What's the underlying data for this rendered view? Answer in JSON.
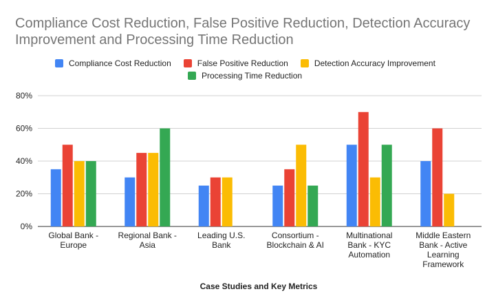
{
  "chart_data": {
    "type": "bar",
    "title": "Compliance Cost Reduction, False Positive Reduction, Detection Accuracy Improvement and Processing Time Reduction",
    "xlabel": "Case Studies and Key Metrics",
    "ylabel": "",
    "ylim": [
      0,
      80
    ],
    "yticks": [
      "0%",
      "20%",
      "40%",
      "60%",
      "80%"
    ],
    "grid": true,
    "legend_position": "top",
    "categories": [
      [
        "Global Bank -",
        "Europe"
      ],
      [
        "Regional Bank -",
        "Asia"
      ],
      [
        "Leading U.S.",
        "Bank"
      ],
      [
        "Consortium -",
        "Blockchain & AI"
      ],
      [
        "Multinational",
        "Bank - KYC",
        "Automation"
      ],
      [
        "Middle Eastern",
        "Bank - Active",
        "Learning",
        "Framework"
      ]
    ],
    "series": [
      {
        "name": "Compliance Cost Reduction",
        "color": "#4285F4",
        "values": [
          35,
          30,
          25,
          25,
          50,
          40
        ]
      },
      {
        "name": "False Positive Reduction",
        "color": "#EA4335",
        "values": [
          50,
          45,
          30,
          35,
          70,
          60
        ]
      },
      {
        "name": "Detection Accuracy Improvement",
        "color": "#FBBC04",
        "values": [
          40,
          45,
          30,
          50,
          30,
          20
        ]
      },
      {
        "name": "Processing Time Reduction",
        "color": "#34A853",
        "values": [
          40,
          60,
          null,
          25,
          50,
          null
        ]
      }
    ]
  }
}
